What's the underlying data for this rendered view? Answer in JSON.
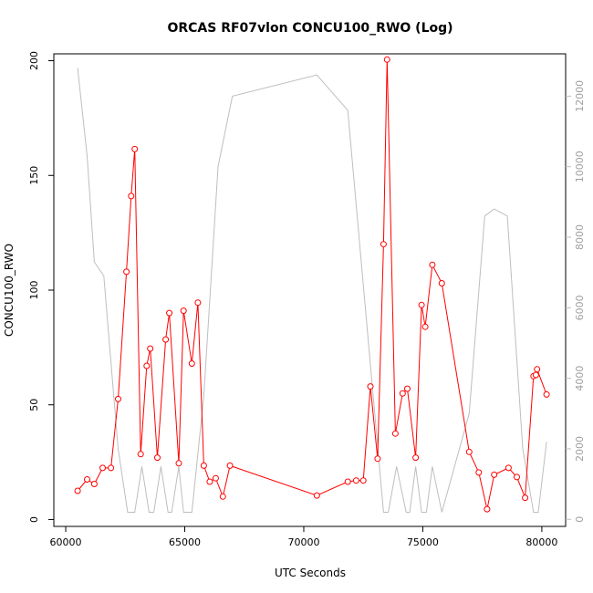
{
  "chart_data": {
    "type": "line",
    "title": "ORCAS RF07vlon CONCU100_RWO (Log)",
    "xlabel": "UTC Seconds",
    "ylabel": "CONCU100_RWO",
    "xlim": [
      59500,
      81000
    ],
    "ylim": [
      -3,
      203
    ],
    "y2lim": [
      -200,
      13200
    ],
    "x_ticks": [
      60000,
      65000,
      70000,
      75000,
      80000
    ],
    "x_tick_labels": [
      "60000",
      "65000",
      "70000",
      "75000",
      "80000"
    ],
    "y_ticks": [
      0,
      50,
      100,
      150,
      200
    ],
    "y_tick_labels": [
      "0",
      "50",
      "100",
      "150",
      "200"
    ],
    "y2_ticks": [
      0,
      2000,
      4000,
      6000,
      8000,
      10000,
      12000
    ],
    "y2_tick_labels": [
      "0",
      "2000",
      "4000",
      "6000",
      "8000",
      "10000",
      "12000"
    ],
    "colors": {
      "primary": "#ff0000",
      "secondary": "#bebebe",
      "axis": "#000000"
    },
    "series": [
      {
        "axis": "left",
        "markers": true,
        "x": [
          60500,
          60900,
          61200,
          61550,
          61900,
          62200,
          62550,
          62750,
          62900,
          63150,
          63400,
          63550,
          63850,
          64200,
          64350,
          64750,
          64950,
          65300,
          65550,
          65800,
          66050,
          66300,
          66600,
          66900,
          70550,
          71850,
          72200,
          72500,
          72800,
          73100,
          73350,
          73500,
          73850,
          74150,
          74350,
          74700,
          74950,
          75100,
          75400,
          75800,
          76950,
          77350,
          77700,
          78000,
          78600,
          78950,
          79300,
          79650,
          79750,
          79800,
          80200
        ],
        "y": [
          12.5,
          17.5,
          15.5,
          22.5,
          22.5,
          52.5,
          108,
          141,
          161.5,
          28.5,
          67,
          74.5,
          27,
          78.5,
          90,
          24.5,
          91,
          68,
          94.5,
          23.5,
          16.5,
          18,
          10,
          23.5,
          10.5,
          16.5,
          17,
          17,
          58,
          26.5,
          120,
          200.5,
          37.5,
          55,
          57,
          27,
          93.5,
          84,
          111,
          103,
          29.5,
          20.5,
          4.5,
          19.5,
          22.5,
          18.5,
          9.5,
          62.5,
          63,
          65.5,
          54.5
        ]
      },
      {
        "axis": "right",
        "markers": false,
        "x": [
          60500,
          60900,
          61200,
          61600,
          62200,
          62600,
          62900,
          63200,
          63500,
          63700,
          64000,
          64300,
          64450,
          64750,
          64950,
          65300,
          65800,
          66400,
          67000,
          70550,
          71850,
          73350,
          73550,
          73900,
          74300,
          74450,
          74700,
          74950,
          75150,
          75400,
          75800,
          76950,
          77600,
          78000,
          78550,
          79200,
          79650,
          79850,
          80200
        ],
        "y": [
          12800,
          10300,
          7300,
          6900,
          2000,
          200,
          200,
          1500,
          200,
          200,
          1500,
          200,
          200,
          1500,
          200,
          200,
          3500,
          10000,
          12000,
          12600,
          11600,
          200,
          200,
          1500,
          200,
          200,
          1500,
          200,
          200,
          1500,
          200,
          3000,
          8600,
          8800,
          8600,
          2000,
          200,
          200,
          2200
        ]
      }
    ]
  }
}
